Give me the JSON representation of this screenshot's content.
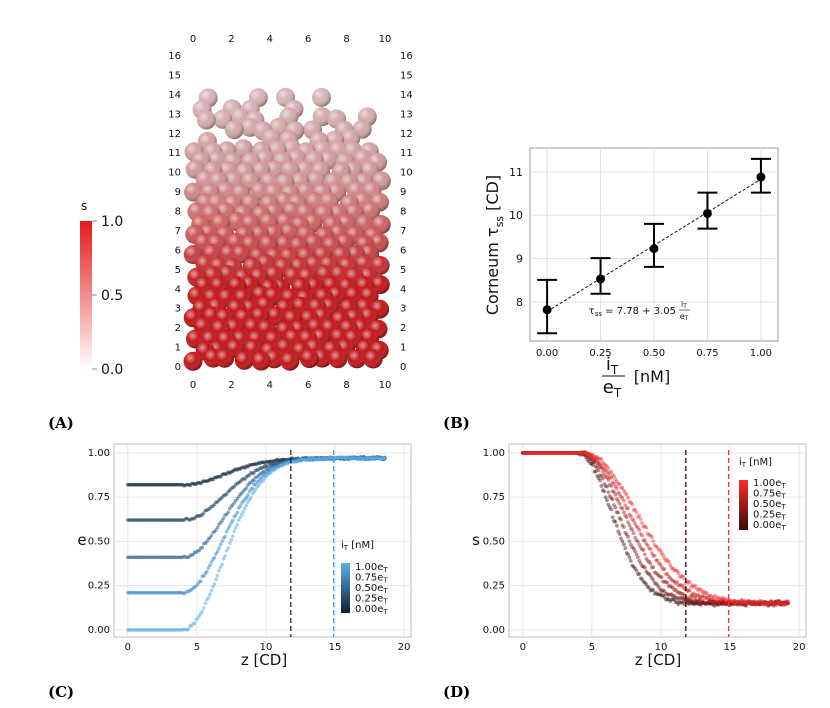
{
  "panels": {
    "a": "(A)",
    "b": "(B)",
    "c": "(C)",
    "d": "(D)"
  },
  "chart_data": [
    {
      "id": "A",
      "type": "scatter",
      "description_kind": "3d-particle-render",
      "colorbar": {
        "title": "s",
        "ticks": [
          "1.0",
          "0.5",
          "0.0"
        ],
        "range": [
          0.0,
          1.0
        ],
        "colors": [
          "#ffffff",
          "#e41a1c"
        ]
      },
      "x_ticks": [
        "0",
        "2",
        "4",
        "6",
        "8",
        "10"
      ],
      "y_ticks": [
        "0",
        "1",
        "2",
        "3",
        "4",
        "5",
        "6",
        "7",
        "8",
        "9",
        "10",
        "11",
        "12",
        "13",
        "14",
        "15",
        "16"
      ]
    },
    {
      "id": "B",
      "type": "scatter",
      "x": [
        0.0,
        0.25,
        0.5,
        0.75,
        1.0
      ],
      "y": [
        7.82,
        8.53,
        9.23,
        10.04,
        10.88
      ],
      "err_low": [
        7.28,
        8.19,
        8.81,
        9.69,
        10.52
      ],
      "err_high": [
        8.51,
        9.01,
        9.8,
        10.52,
        11.3
      ],
      "fit": {
        "intercept": 7.78,
        "slope": 3.05
      },
      "ylabel_main": "Corneum τ",
      "ylabel_sub": "ss",
      "ylabel_unit": " [CD]",
      "xlabel_num": "i",
      "xlabel_num_sub": "T",
      "xlabel_den": "e",
      "xlabel_den_sub": "T",
      "xlabel_unit": "[nM]",
      "x_ticks": [
        "0.00",
        "0.25",
        "0.50",
        "0.75",
        "1.00"
      ],
      "y_ticks": [
        "8",
        "9",
        "10",
        "11"
      ],
      "xlim": [
        -0.08,
        1.08
      ],
      "ylim": [
        7.1,
        11.55
      ],
      "annotation": {
        "lhs": "τ",
        "lhs_sub": "ss",
        "eq": " = 7.78 + 3.05",
        "num": "i",
        "num_sub": "T",
        "den": "e",
        "den_sub": "T"
      }
    },
    {
      "id": "C",
      "type": "scatter",
      "xlabel": "z [CD]",
      "ylabel": "e",
      "x_ticks": [
        "0",
        "5",
        "10",
        "15",
        "20"
      ],
      "y_ticks": [
        "0.00",
        "0.25",
        "0.50",
        "0.75",
        "1.00"
      ],
      "xlim": [
        -1,
        20.5
      ],
      "ylim": [
        -0.04,
        1.05
      ],
      "series": [
        {
          "name": "0.00",
          "start": 0.82,
          "z0": 4.0,
          "k": 0.33,
          "color": "#0d1f33"
        },
        {
          "name": "0.25",
          "start": 0.62,
          "z0": 4.0,
          "k": 0.34,
          "color": "#1f4466"
        },
        {
          "name": "0.50",
          "start": 0.41,
          "z0": 4.0,
          "k": 0.35,
          "color": "#2f6896"
        },
        {
          "name": "0.75",
          "start": 0.21,
          "z0": 4.0,
          "k": 0.36,
          "color": "#3f8ac4"
        },
        {
          "name": "1.00",
          "start": 0.0,
          "z0": 4.0,
          "k": 0.37,
          "color": "#5aaeea"
        }
      ],
      "vlines": [
        {
          "x": 11.8,
          "color": "#1a2a3a"
        },
        {
          "x": 14.9,
          "color": "#4aa3e3"
        }
      ],
      "legend": {
        "title": "i",
        "title_sub": "T",
        "title_unit": " [nM]",
        "entries": [
          "1.00e",
          "0.75e",
          "0.50e",
          "0.25e",
          "0.00e"
        ],
        "entry_sub": "T",
        "position": "right"
      }
    },
    {
      "id": "D",
      "type": "scatter",
      "xlabel": "z [CD]",
      "ylabel": "s",
      "x_ticks": [
        "0",
        "5",
        "10",
        "15",
        "20"
      ],
      "y_ticks": [
        "0.00",
        "0.25",
        "0.50",
        "0.75",
        "1.00"
      ],
      "xlim": [
        -1,
        20.5
      ],
      "ylim": [
        -0.04,
        1.05
      ],
      "series": [
        {
          "name": "0.00",
          "z0": 4.0,
          "scale": 4.3,
          "floor": 0.15,
          "color": "#3a0a0a"
        },
        {
          "name": "0.25",
          "z0": 4.1,
          "scale": 4.9,
          "floor": 0.15,
          "color": "#6b1010"
        },
        {
          "name": "0.50",
          "z0": 4.2,
          "scale": 5.5,
          "floor": 0.15,
          "color": "#9a1616"
        },
        {
          "name": "0.75",
          "z0": 4.3,
          "scale": 6.1,
          "floor": 0.15,
          "color": "#c91d1d"
        },
        {
          "name": "1.00",
          "z0": 4.4,
          "scale": 6.8,
          "floor": 0.15,
          "color": "#ee2a2a"
        }
      ],
      "vlines": [
        {
          "x": 11.8,
          "color": "#3a0a0a"
        },
        {
          "x": 14.9,
          "color": "#ee3a3a"
        }
      ],
      "legend": {
        "title": "i",
        "title_sub": "T",
        "title_unit": " [nM]",
        "entries": [
          "1.00e",
          "0.75e",
          "0.50e",
          "0.25e",
          "0.00e"
        ],
        "entry_sub": "T",
        "position": "top-right"
      }
    }
  ]
}
